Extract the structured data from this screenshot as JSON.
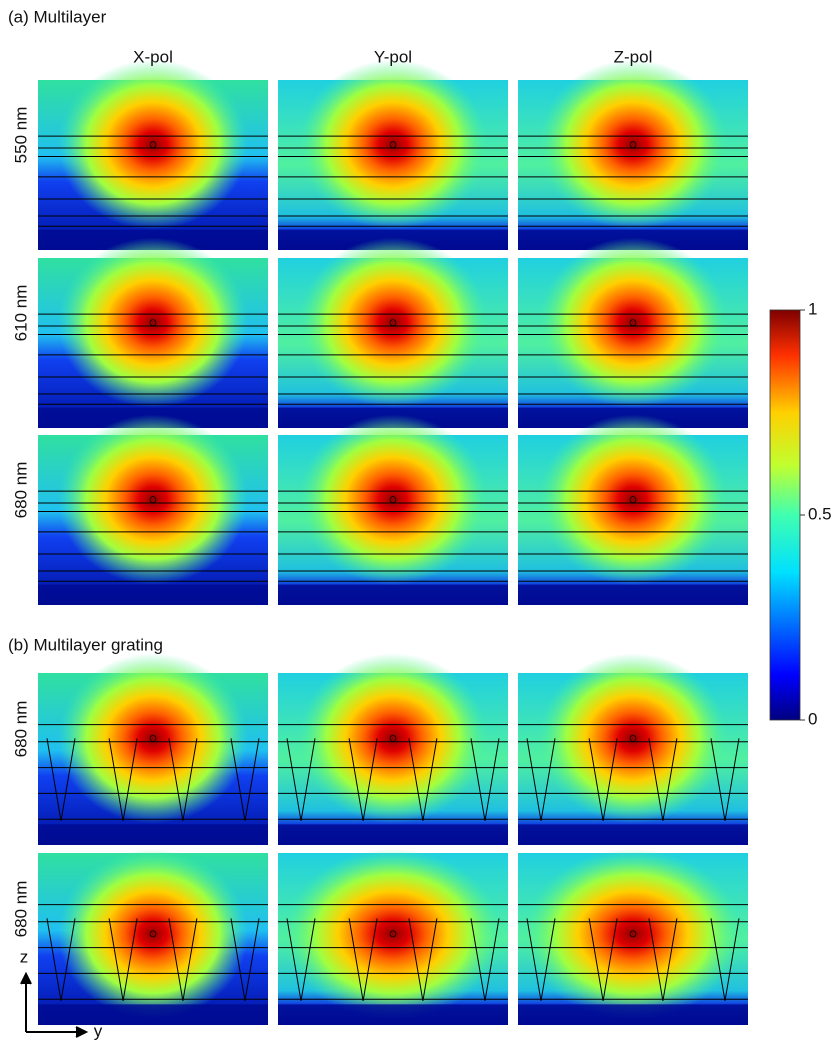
{
  "sections": [
    {
      "title": "(a) Multilayer",
      "rows": [
        {
          "label": "550 nm"
        },
        {
          "label": "610 nm"
        },
        {
          "label": "680 nm"
        }
      ]
    },
    {
      "title": "(b) Multilayer grating",
      "rows": [
        {
          "label": "680 nm"
        },
        {
          "label": "680 nm"
        }
      ]
    }
  ],
  "columns": [
    "X-pol",
    "Y-pol",
    "Z-pol"
  ],
  "colorbar": {
    "ylim": [
      0,
      1
    ],
    "ticks": [
      1,
      0.5,
      0
    ]
  },
  "axes": {
    "vertical": "z",
    "horizontal": "y"
  }
}
